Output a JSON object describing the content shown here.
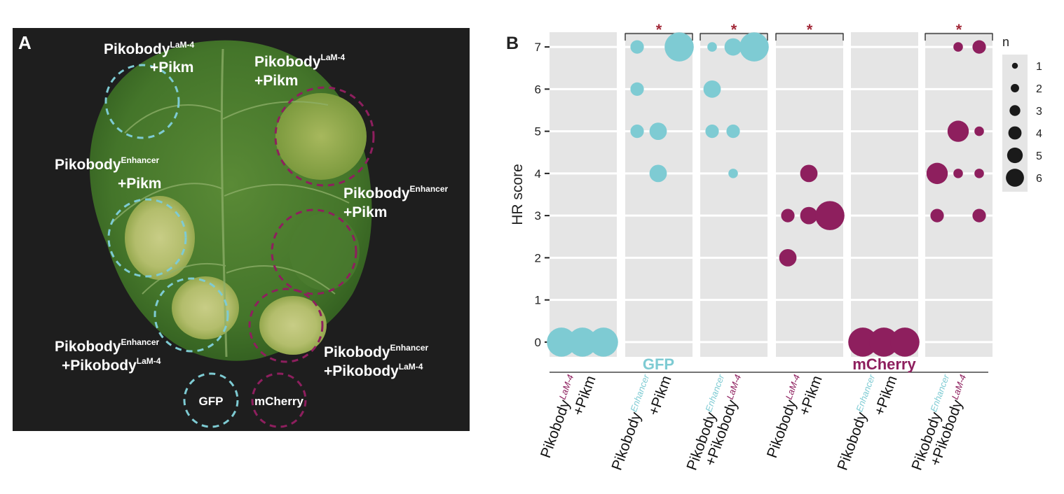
{
  "panel_a": {
    "letter": "A",
    "labels": [
      {
        "id": "lam-top-left",
        "main": "Pikobody",
        "sup": "LaM-4",
        "line2": "+Pikm"
      },
      {
        "id": "lam-top-right",
        "main": "Pikobody",
        "sup": "LaM-4",
        "line2": "+Pikm"
      },
      {
        "id": "enh-left",
        "main": "Pikobody",
        "sup": "Enhancer",
        "line2": "+Pikm"
      },
      {
        "id": "enh-right",
        "main": "Pikobody",
        "sup": "Enhancer",
        "line2": "+Pikm"
      },
      {
        "id": "combo-left",
        "main": "Pikobody",
        "sup": "Enhancer",
        "line2main": "+Pikobody",
        "line2sup": "LaM-4"
      },
      {
        "id": "combo-right",
        "main": "Pikobody",
        "sup": "Enhancer",
        "line2main": "+Pikobody",
        "line2sup": "LaM-4"
      }
    ],
    "legend_gfp": "GFP",
    "legend_mcherry": "mCherry",
    "colors": {
      "gfp": "#7ecbd3",
      "mcherry": "#8e1f5e",
      "leaf": "#4a7a2c"
    }
  },
  "chart_data": {
    "panel_letter": "B",
    "type": "scatter",
    "ylabel": "HR score",
    "yticks": [
      0,
      1,
      2,
      3,
      4,
      5,
      6,
      7
    ],
    "ylim": [
      -0.35,
      7.35
    ],
    "size_legend": {
      "title": "n",
      "values": [
        1,
        2,
        3,
        4,
        5,
        6
      ]
    },
    "groups": [
      {
        "name": "GFP",
        "color": "#7ecbd3",
        "panels": [
          0,
          1,
          2
        ]
      },
      {
        "name": "mCherry",
        "color": "#8e1f5e",
        "panels": [
          3,
          4,
          5
        ]
      }
    ],
    "significance_marker": "*",
    "panels": [
      {
        "label_main": "Pikobody",
        "label_sup": "LaM-4",
        "sup_color": "#8e1f5e",
        "label_line2": "+Pikm",
        "line2_sup": "",
        "line2_sup_color": "",
        "color": "#7ecbd3",
        "significant": false,
        "points": [
          {
            "x": 1,
            "y": 0,
            "n": 6
          },
          {
            "x": 2,
            "y": 0,
            "n": 6
          },
          {
            "x": 3,
            "y": 0,
            "n": 6
          }
        ]
      },
      {
        "label_main": "Pikobody",
        "label_sup": "Enhancer",
        "sup_color": "#7ecbd3",
        "label_line2": "+Pikm",
        "line2_sup": "",
        "line2_sup_color": "",
        "color": "#7ecbd3",
        "significant": true,
        "points": [
          {
            "x": 1,
            "y": 7,
            "n": 2
          },
          {
            "x": 3,
            "y": 7,
            "n": 6
          },
          {
            "x": 1,
            "y": 6,
            "n": 2
          },
          {
            "x": 1,
            "y": 5,
            "n": 2
          },
          {
            "x": 2,
            "y": 5,
            "n": 3
          },
          {
            "x": 2,
            "y": 4,
            "n": 3
          }
        ]
      },
      {
        "label_main": "Pikobody",
        "label_sup": "Enhancer",
        "sup_color": "#7ecbd3",
        "label_line2": "+Pikobody",
        "line2_sup": "LaM-4",
        "line2_sup_color": "#8e1f5e",
        "color": "#7ecbd3",
        "significant": true,
        "points": [
          {
            "x": 1,
            "y": 7,
            "n": 1
          },
          {
            "x": 2,
            "y": 7,
            "n": 3
          },
          {
            "x": 3,
            "y": 7,
            "n": 6
          },
          {
            "x": 1,
            "y": 6,
            "n": 3
          },
          {
            "x": 1,
            "y": 5,
            "n": 2
          },
          {
            "x": 2,
            "y": 5,
            "n": 2
          },
          {
            "x": 2,
            "y": 4,
            "n": 1
          }
        ]
      },
      {
        "label_main": "Pikobody",
        "label_sup": "LaM-4",
        "sup_color": "#8e1f5e",
        "label_line2": "+Pikm",
        "line2_sup": "",
        "line2_sup_color": "",
        "color": "#8e1f5e",
        "significant": true,
        "points": [
          {
            "x": 2,
            "y": 4,
            "n": 3
          },
          {
            "x": 1,
            "y": 3,
            "n": 2
          },
          {
            "x": 2,
            "y": 3,
            "n": 3
          },
          {
            "x": 3,
            "y": 3,
            "n": 6
          },
          {
            "x": 1,
            "y": 2,
            "n": 3
          }
        ]
      },
      {
        "label_main": "Pikobody",
        "label_sup": "Enhancer",
        "sup_color": "#7ecbd3",
        "label_line2": "+Pikm",
        "line2_sup": "",
        "line2_sup_color": "",
        "color": "#8e1f5e",
        "significant": false,
        "points": [
          {
            "x": 1,
            "y": 0,
            "n": 6
          },
          {
            "x": 2,
            "y": 0,
            "n": 6
          },
          {
            "x": 3,
            "y": 0,
            "n": 6
          }
        ]
      },
      {
        "label_main": "Pikobody",
        "label_sup": "Enhancer",
        "sup_color": "#7ecbd3",
        "label_line2": "+Pikobody",
        "line2_sup": "LaM-4",
        "line2_sup_color": "#8e1f5e",
        "color": "#8e1f5e",
        "significant": true,
        "points": [
          {
            "x": 2,
            "y": 7,
            "n": 1
          },
          {
            "x": 3,
            "y": 7,
            "n": 2
          },
          {
            "x": 2,
            "y": 5,
            "n": 4
          },
          {
            "x": 3,
            "y": 5,
            "n": 1
          },
          {
            "x": 1,
            "y": 4,
            "n": 4
          },
          {
            "x": 2,
            "y": 4,
            "n": 1
          },
          {
            "x": 3,
            "y": 4,
            "n": 1
          },
          {
            "x": 1,
            "y": 3,
            "n": 2
          },
          {
            "x": 3,
            "y": 3,
            "n": 2
          }
        ]
      }
    ]
  }
}
